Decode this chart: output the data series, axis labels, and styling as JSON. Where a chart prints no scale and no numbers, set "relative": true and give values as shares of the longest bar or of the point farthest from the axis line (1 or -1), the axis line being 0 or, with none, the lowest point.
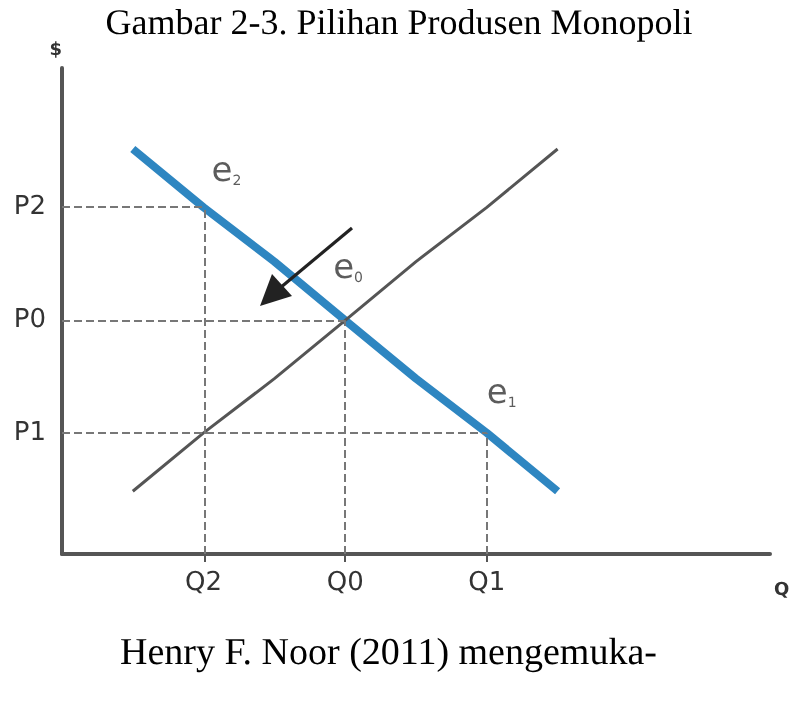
{
  "chart_data": {
    "type": "line",
    "title": "Gambar 2-3. Pilihan Produsen Monopoli",
    "xlabel": "Q",
    "ylabel": "$",
    "relative": true,
    "tick_labels": "x",
    "categories": [
      null,
      null,
      "Q2",
      null,
      "Q0",
      null,
      "Q1",
      null,
      null,
      null,
      null
    ],
    "grid": "x",
    "marker": "none",
    "line_style": "solid",
    "series": [
      {
        "color": "#2e86c1",
        "values": [
          null,
          1,
          0.856,
          0.722,
          0.577,
          0.433,
          0.299,
          0.155,
          null,
          null,
          null
        ]
      },
      {
        "color": "#555555",
        "values": [
          null,
          0.155,
          0.299,
          0.433,
          0.577,
          0.722,
          0.856,
          1,
          null,
          null,
          null
        ]
      }
    ],
    "ref_lines": [
      {
        "axis": "y",
        "value": 0.856,
        "label": "P2",
        "line_style": "dashed",
        "color": "#777777"
      },
      {
        "axis": "y",
        "value": 0.577,
        "label": "P0",
        "line_style": "dashed",
        "color": "#777777"
      },
      {
        "axis": "y",
        "value": 0.299,
        "label": "P1",
        "line_style": "dashed",
        "color": "#777777"
      }
    ],
    "annotations": [
      "e$_{2}$",
      "e$_{0}$",
      "e$_{1}$",
      "Henry F. Noor (2011) mengemuka-"
    ]
  }
}
